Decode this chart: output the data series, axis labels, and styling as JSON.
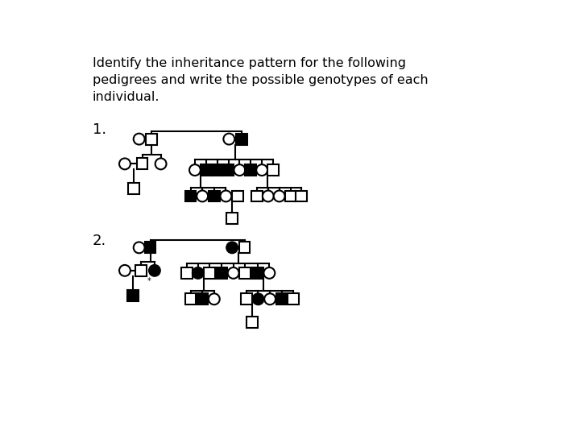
{
  "bg_color": "#ffffff",
  "title": "Identify the inheritance pattern for the following\npedigrees and write the possible genotypes of each\nindividual.",
  "label1": "1.",
  "label2": "2.",
  "r": 9,
  "s": 18
}
